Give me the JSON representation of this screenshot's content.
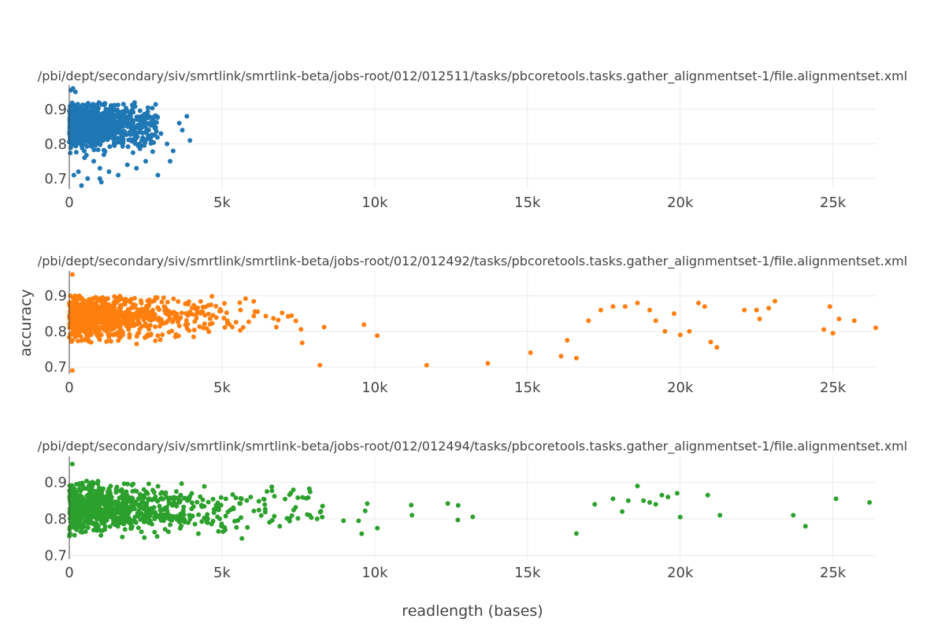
{
  "figure": {
    "xlabel": "readlength (bases)",
    "ylabel": "accuracy"
  },
  "chart_data": [
    {
      "type": "scatter",
      "title": "/pbi/dept/secondary/siv/smrtlink/smrtlink-beta/jobs-root/012/012511/tasks/pbcoretools.tasks.gather_alignmentset-1/file.alignmentset.xml",
      "color": "#1f77b4",
      "xlim": [
        0,
        26400
      ],
      "ylim": [
        0.67,
        0.97
      ],
      "x_ticks": [
        0,
        5000,
        10000,
        15000,
        20000,
        25000
      ],
      "x_tick_labels": [
        "0",
        "5k",
        "10k",
        "15k",
        "20k",
        "25k"
      ],
      "y_ticks": [
        0.7,
        0.8,
        0.9
      ],
      "y_tick_labels": [
        "0.7",
        "0.8",
        "0.9"
      ],
      "grid": true,
      "points": [
        [
          50,
          0.955
        ],
        [
          120,
          0.96
        ],
        [
          200,
          0.95
        ],
        [
          400,
          0.9
        ],
        [
          600,
          0.88
        ],
        [
          900,
          0.87
        ],
        [
          1200,
          0.9
        ],
        [
          1500,
          0.86
        ],
        [
          1800,
          0.88
        ],
        [
          2100,
          0.85
        ],
        [
          2400,
          0.87
        ],
        [
          2600,
          0.84
        ],
        [
          2800,
          0.86
        ],
        [
          3000,
          0.83
        ],
        [
          3200,
          0.8
        ],
        [
          3400,
          0.78
        ],
        [
          3600,
          0.86
        ],
        [
          3700,
          0.84
        ],
        [
          3850,
          0.88
        ],
        [
          3950,
          0.81
        ],
        [
          500,
          0.76
        ],
        [
          800,
          0.75
        ],
        [
          1000,
          0.73
        ],
        [
          1300,
          0.72
        ],
        [
          1600,
          0.71
        ],
        [
          1900,
          0.74
        ],
        [
          2200,
          0.73
        ],
        [
          2500,
          0.75
        ],
        [
          2900,
          0.71
        ],
        [
          3300,
          0.75
        ],
        [
          300,
          0.72
        ],
        [
          600,
          0.7
        ],
        [
          1000,
          0.7
        ],
        [
          400,
          0.68
        ],
        [
          1050,
          0.69
        ],
        [
          150,
          0.71
        ]
      ],
      "noise": {
        "count": 1000,
        "x_max": 2900,
        "x_center": 1400,
        "y_min": 0.72,
        "y_max": 0.92,
        "y_center": 0.85,
        "seed": 11
      }
    },
    {
      "type": "scatter",
      "title": "/pbi/dept/secondary/siv/smrtlink/smrtlink-beta/jobs-root/012/012492/tasks/pbcoretools.tasks.gather_alignmentset-1/file.alignmentset.xml",
      "color": "#ff7f0e",
      "xlim": [
        0,
        26400
      ],
      "ylim": [
        0.68,
        0.97
      ],
      "x_ticks": [
        0,
        5000,
        10000,
        15000,
        20000,
        25000
      ],
      "x_tick_labels": [
        "0",
        "5k",
        "10k",
        "15k",
        "20k",
        "25k"
      ],
      "y_ticks": [
        0.7,
        0.8,
        0.9
      ],
      "y_tick_labels": [
        "0.7",
        "0.8",
        "0.9"
      ],
      "grid": true,
      "points": [
        [
          100,
          0.96
        ],
        [
          100,
          0.69
        ],
        [
          8200,
          0.705
        ],
        [
          11700,
          0.705
        ],
        [
          13700,
          0.71
        ],
        [
          16100,
          0.73
        ],
        [
          16600,
          0.725
        ],
        [
          15100,
          0.74
        ],
        [
          16300,
          0.775
        ],
        [
          17000,
          0.83
        ],
        [
          17400,
          0.86
        ],
        [
          17800,
          0.87
        ],
        [
          18200,
          0.87
        ],
        [
          18600,
          0.88
        ],
        [
          19000,
          0.86
        ],
        [
          19200,
          0.83
        ],
        [
          19800,
          0.85
        ],
        [
          20300,
          0.8
        ],
        [
          20600,
          0.88
        ],
        [
          20800,
          0.87
        ],
        [
          21000,
          0.77
        ],
        [
          21200,
          0.755
        ],
        [
          22100,
          0.86
        ],
        [
          22500,
          0.86
        ],
        [
          22600,
          0.835
        ],
        [
          22900,
          0.865
        ],
        [
          23100,
          0.885
        ],
        [
          24700,
          0.805
        ],
        [
          24900,
          0.87
        ],
        [
          25000,
          0.795
        ],
        [
          25200,
          0.835
        ],
        [
          25700,
          0.83
        ],
        [
          26400,
          0.81
        ],
        [
          19500,
          0.8
        ],
        [
          20000,
          0.79
        ]
      ],
      "noise": {
        "count": 850,
        "x_max": 17200,
        "x_center": 1800,
        "y_min": 0.71,
        "y_max": 0.9,
        "y_center": 0.84,
        "seed": 29
      }
    },
    {
      "type": "scatter",
      "title": "/pbi/dept/secondary/siv/smrtlink/smrtlink-beta/jobs-root/012/012494/tasks/pbcoretools.tasks.gather_alignmentset-1/file.alignmentset.xml",
      "color": "#2ca02c",
      "xlim": [
        0,
        26400
      ],
      "ylim": [
        0.69,
        0.97
      ],
      "x_ticks": [
        0,
        5000,
        10000,
        15000,
        20000,
        25000
      ],
      "x_tick_labels": [
        "0",
        "5k",
        "10k",
        "15k",
        "20k",
        "25k"
      ],
      "y_ticks": [
        0.7,
        0.8,
        0.9
      ],
      "y_tick_labels": [
        "0.7",
        "0.8",
        "0.9"
      ],
      "grid": true,
      "points": [
        [
          100,
          0.95
        ],
        [
          17800,
          0.855
        ],
        [
          18300,
          0.85
        ],
        [
          18600,
          0.89
        ],
        [
          18800,
          0.85
        ],
        [
          19000,
          0.845
        ],
        [
          19200,
          0.84
        ],
        [
          19400,
          0.865
        ],
        [
          19600,
          0.86
        ],
        [
          19900,
          0.87
        ],
        [
          20000,
          0.805
        ],
        [
          20900,
          0.865
        ],
        [
          21300,
          0.81
        ],
        [
          23700,
          0.81
        ],
        [
          24100,
          0.78
        ],
        [
          25100,
          0.855
        ],
        [
          26200,
          0.845
        ],
        [
          16600,
          0.76
        ],
        [
          17200,
          0.84
        ],
        [
          18100,
          0.82
        ]
      ],
      "noise": {
        "count": 900,
        "x_max": 17500,
        "x_center": 2200,
        "y_min": 0.705,
        "y_max": 0.905,
        "y_center": 0.83,
        "seed": 47
      }
    }
  ]
}
